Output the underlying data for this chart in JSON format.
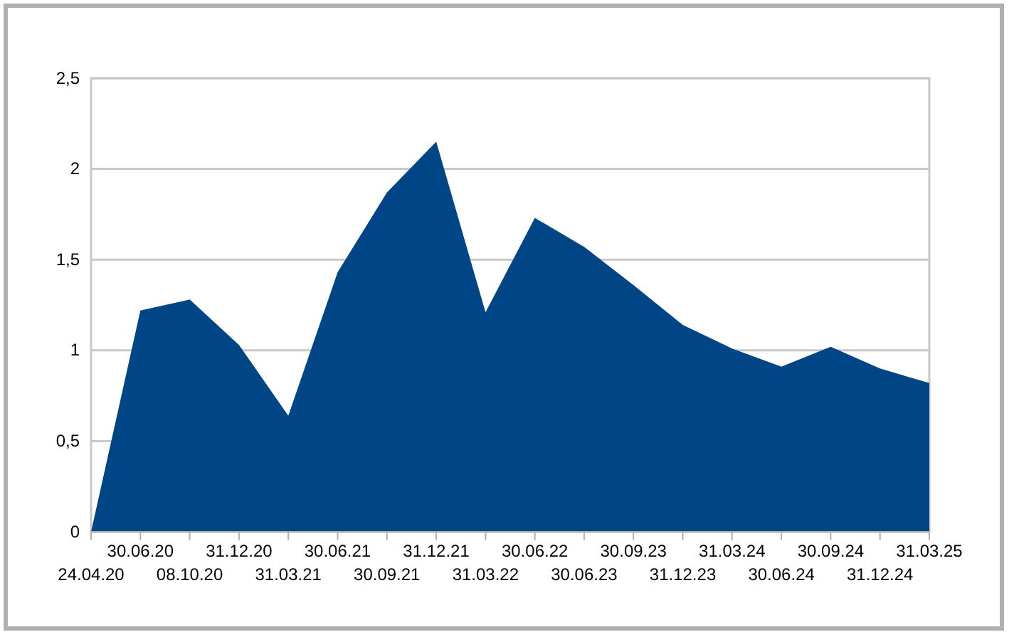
{
  "chart_data": {
    "type": "area",
    "categories": [
      "24.04.20",
      "30.06.20",
      "08.10.20",
      "31.12.20",
      "31.03.21",
      "30.06.21",
      "30.09.21",
      "31.12.21",
      "31.03.22",
      "30.06.22",
      "30.06.23",
      "30.09.23",
      "31.12.23",
      "31.03.24",
      "30.06.24",
      "30.09.24",
      "31.12.24",
      "31.03.25"
    ],
    "series": [
      {
        "color": "#004586",
        "values": [
          0,
          1.22,
          1.28,
          1.03,
          0.64,
          1.43,
          1.87,
          2.15,
          1.21,
          1.73,
          1.57,
          1.36,
          1.14,
          1.01,
          0.91,
          1.02,
          0.9,
          0.82
        ]
      }
    ],
    "ylim": [
      0,
      2.5
    ],
    "yticks": [
      0,
      {
        "value": 0.5,
        "label": "0,5"
      },
      1,
      {
        "value": 1.5,
        "label": "1,5"
      },
      2,
      {
        "value": 2.5,
        "label": "2,5"
      }
    ],
    "grid": "y"
  }
}
